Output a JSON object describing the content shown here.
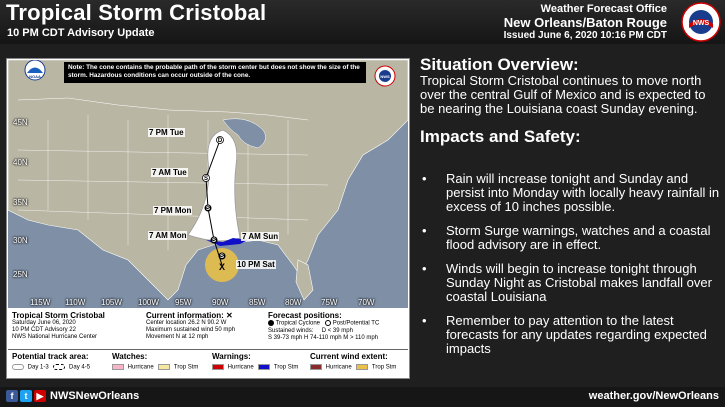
{
  "header": {
    "title": "Tropical Storm Cristobal",
    "subtitle": "10 PM CDT Advisory Update",
    "office_line1": "Weather Forecast Office",
    "office_line2": "New Orleans/Baton Rouge",
    "office_line3": "Issued June 6, 2020 10:16 PM CDT",
    "logo_text": "NWS"
  },
  "map": {
    "note": "Note: The cone contains the probable path of the storm center but does not show the size of the storm. Hazardous conditions can occur outside of the cone.",
    "track_labels": [
      "7 PM Tue",
      "7 AM Tue",
      "7 PM Mon",
      "7 AM Mon",
      "7 AM Sun",
      "10 PM Sat"
    ],
    "track_points": [
      "D",
      "S",
      "S",
      "S",
      "S"
    ],
    "current_marker": "X",
    "latitudes": [
      "45N",
      "40N",
      "35N",
      "30N",
      "25N"
    ],
    "longitudes": [
      "115W",
      "110W",
      "105W",
      "100W",
      "95W",
      "90W",
      "85W",
      "80W",
      "75W",
      "70W"
    ],
    "logo_text": "NOAA",
    "nws_logo_text": "NWS"
  },
  "legend": {
    "storm_name": "Tropical Storm Cristobal",
    "storm_date": "Saturday June 06, 2020",
    "storm_advisory": "10 PM CDT Advisory 22",
    "storm_center": "NWS National Hurricane Center",
    "current_title": "Current information: ✕",
    "current_location": "Center location 26.2 N 90.2 W",
    "current_wind": "Maximum sustained wind 50 mph",
    "current_movement": "Movement N at 12 mph",
    "forecast_title": "Forecast positions:",
    "forecast_tc": "Tropical Cyclone",
    "forecast_post": "Post/Potential TC",
    "forecast_sustained": "Sustained winds:",
    "forecast_d": "D < 39 mph",
    "forecast_s": "S 39-73 mph",
    "forecast_h": "H 74-110 mph",
    "forecast_m": "M > 110 mph",
    "track_area_title": "Potential track area:",
    "day_1_3": "Day 1-3",
    "day_4_5": "Day 4-5",
    "watches_title": "Watches:",
    "watch_hurricane": "Hurricane",
    "watch_trop": "Trop Stm",
    "warnings_title": "Warnings:",
    "warning_hurricane": "Hurricane",
    "warning_trop": "Trop Stm",
    "wind_extent_title": "Current wind extent:",
    "wind_hurricane": "Hurricane",
    "wind_trop": "Trop Stm"
  },
  "situation": {
    "title": "Situation Overview:",
    "body": "Tropical Storm Cristobal continues to move north over the central Gulf of Mexico and is expected to be nearing the Louisiana coast Sunday evening."
  },
  "impacts": {
    "title": "Impacts and Safety:",
    "items": [
      "Rain will increase tonight and Sunday and persist into Monday with locally heavy rainfall in excess of 10 inches possible.",
      "Storm Surge warnings, watches and a coastal flood advisory are in effect.",
      "Winds will begin to increase tonight through Sunday Night as Cristobal makes landfall over coastal Louisiana",
      "Remember to pay attention to the latest forecasts for any updates regarding expected impacts"
    ]
  },
  "footer": {
    "handle": "NWSNewOrleans",
    "website": "weather.gov/NewOrleans",
    "facebook_icon": "f",
    "twitter_icon": "t",
    "youtube_icon": "▶"
  },
  "colors": {
    "cone": "#ffffff",
    "cone_day45": "#ffffff",
    "trop_wind": "#e8c04a",
    "warning_trop": "#1010c8",
    "warning_hurricane": "#d00000",
    "watch_hurricane": "#f7b6c8",
    "watch_trop": "#f5e6a0",
    "land": "#b9b6a4",
    "water": "#7e8fa6"
  }
}
